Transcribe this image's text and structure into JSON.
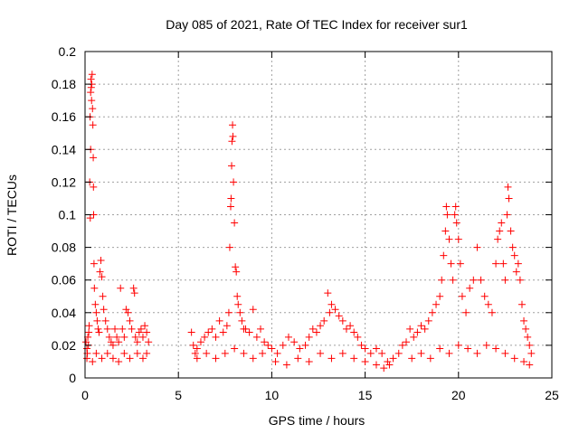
{
  "chart_data": {
    "type": "scatter",
    "title": "Day 085 of 2021, Rate Of TEC Index for receiver sur1",
    "xlabel": "GPS time / hours",
    "ylabel": "ROTI / TECUs",
    "xlim": [
      0,
      25
    ],
    "ylim": [
      0,
      0.2
    ],
    "xticks": [
      0,
      5,
      10,
      15,
      20,
      25
    ],
    "yticks": [
      0,
      0.02,
      0.04,
      0.06,
      0.08,
      0.1,
      0.12,
      0.14,
      0.16,
      0.18,
      0.2
    ],
    "xtick_labels": [
      "0",
      "5",
      "10",
      "15",
      "20",
      "25"
    ],
    "ytick_labels": [
      "0",
      "0.02",
      "0.04",
      "0.06",
      "0.08",
      "0.1",
      "0.12",
      "0.14",
      "0.16",
      "0.18",
      "0.2"
    ],
    "grid": true,
    "marker": "+",
    "color": "#ff0000",
    "series": [
      {
        "points": [
          [
            0.05,
            0.022
          ],
          [
            0.1,
            0.018
          ],
          [
            0.12,
            0.015
          ],
          [
            0.15,
            0.025
          ],
          [
            0.18,
            0.02
          ],
          [
            0.2,
            0.028
          ],
          [
            0.22,
            0.032
          ],
          [
            0.25,
            0.12
          ],
          [
            0.27,
            0.16
          ],
          [
            0.28,
            0.098
          ],
          [
            0.3,
            0.175
          ],
          [
            0.3,
            0.14
          ],
          [
            0.32,
            0.183
          ],
          [
            0.33,
            0.178
          ],
          [
            0.35,
            0.17
          ],
          [
            0.36,
            0.18
          ],
          [
            0.38,
            0.186
          ],
          [
            0.4,
            0.165
          ],
          [
            0.42,
            0.155
          ],
          [
            0.44,
            0.135
          ],
          [
            0.45,
            0.117
          ],
          [
            0.46,
            0.1
          ],
          [
            0.48,
            0.07
          ],
          [
            0.5,
            0.055
          ],
          [
            0.55,
            0.045
          ],
          [
            0.6,
            0.04
          ],
          [
            0.65,
            0.035
          ],
          [
            0.7,
            0.03
          ],
          [
            0.75,
            0.028
          ],
          [
            0.8,
            0.065
          ],
          [
            0.85,
            0.072
          ],
          [
            0.9,
            0.062
          ],
          [
            0.95,
            0.05
          ],
          [
            1.0,
            0.042
          ],
          [
            1.1,
            0.035
          ],
          [
            1.2,
            0.03
          ],
          [
            1.3,
            0.025
          ],
          [
            1.4,
            0.022
          ],
          [
            1.5,
            0.02
          ],
          [
            1.6,
            0.03
          ],
          [
            1.7,
            0.025
          ],
          [
            1.8,
            0.022
          ],
          [
            1.9,
            0.055
          ],
          [
            2.0,
            0.03
          ],
          [
            2.1,
            0.025
          ],
          [
            2.2,
            0.042
          ],
          [
            2.3,
            0.04
          ],
          [
            2.4,
            0.035
          ],
          [
            2.5,
            0.03
          ],
          [
            2.6,
            0.055
          ],
          [
            2.65,
            0.052
          ],
          [
            2.7,
            0.025
          ],
          [
            2.8,
            0.022
          ],
          [
            2.9,
            0.028
          ],
          [
            3.0,
            0.03
          ],
          [
            3.1,
            0.025
          ],
          [
            3.2,
            0.032
          ],
          [
            3.3,
            0.028
          ],
          [
            3.4,
            0.022
          ],
          [
            0.1,
            0.012
          ],
          [
            0.4,
            0.01
          ],
          [
            0.6,
            0.015
          ],
          [
            0.9,
            0.012
          ],
          [
            1.2,
            0.015
          ],
          [
            1.5,
            0.012
          ],
          [
            1.8,
            0.01
          ],
          [
            2.1,
            0.015
          ],
          [
            2.4,
            0.012
          ],
          [
            2.8,
            0.015
          ],
          [
            3.1,
            0.012
          ],
          [
            3.3,
            0.015
          ],
          [
            5.7,
            0.028
          ],
          [
            5.8,
            0.02
          ],
          [
            5.9,
            0.015
          ],
          [
            6.0,
            0.018
          ],
          [
            6.2,
            0.022
          ],
          [
            6.4,
            0.025
          ],
          [
            6.6,
            0.028
          ],
          [
            6.8,
            0.03
          ],
          [
            7.0,
            0.025
          ],
          [
            7.2,
            0.035
          ],
          [
            7.4,
            0.028
          ],
          [
            7.6,
            0.032
          ],
          [
            7.7,
            0.04
          ],
          [
            7.75,
            0.08
          ],
          [
            7.8,
            0.105
          ],
          [
            7.82,
            0.11
          ],
          [
            7.85,
            0.13
          ],
          [
            7.87,
            0.145
          ],
          [
            7.9,
            0.155
          ],
          [
            7.92,
            0.148
          ],
          [
            7.95,
            0.12
          ],
          [
            8.0,
            0.095
          ],
          [
            8.05,
            0.068
          ],
          [
            8.1,
            0.065
          ],
          [
            8.15,
            0.05
          ],
          [
            8.2,
            0.045
          ],
          [
            8.3,
            0.04
          ],
          [
            8.4,
            0.035
          ],
          [
            8.5,
            0.03
          ],
          [
            8.6,
            0.03
          ],
          [
            8.8,
            0.028
          ],
          [
            9.0,
            0.042
          ],
          [
            9.2,
            0.025
          ],
          [
            9.4,
            0.03
          ],
          [
            9.6,
            0.022
          ],
          [
            9.8,
            0.02
          ],
          [
            6.0,
            0.012
          ],
          [
            6.5,
            0.015
          ],
          [
            7.0,
            0.012
          ],
          [
            7.5,
            0.015
          ],
          [
            8.0,
            0.018
          ],
          [
            8.5,
            0.015
          ],
          [
            9.0,
            0.012
          ],
          [
            9.5,
            0.015
          ],
          [
            10.0,
            0.018
          ],
          [
            10.3,
            0.015
          ],
          [
            10.6,
            0.02
          ],
          [
            10.9,
            0.025
          ],
          [
            11.2,
            0.022
          ],
          [
            11.5,
            0.018
          ],
          [
            11.8,
            0.02
          ],
          [
            12.0,
            0.025
          ],
          [
            12.2,
            0.03
          ],
          [
            12.4,
            0.028
          ],
          [
            12.6,
            0.032
          ],
          [
            12.8,
            0.035
          ],
          [
            13.0,
            0.052
          ],
          [
            13.1,
            0.04
          ],
          [
            13.2,
            0.045
          ],
          [
            13.4,
            0.042
          ],
          [
            13.6,
            0.038
          ],
          [
            13.8,
            0.035
          ],
          [
            14.0,
            0.03
          ],
          [
            14.2,
            0.032
          ],
          [
            14.4,
            0.028
          ],
          [
            14.6,
            0.025
          ],
          [
            14.8,
            0.02
          ],
          [
            15.0,
            0.018
          ],
          [
            15.3,
            0.015
          ],
          [
            15.6,
            0.018
          ],
          [
            15.9,
            0.015
          ],
          [
            16.2,
            0.01
          ],
          [
            16.5,
            0.012
          ],
          [
            16.8,
            0.015
          ],
          [
            10.2,
            0.01
          ],
          [
            10.8,
            0.008
          ],
          [
            11.4,
            0.012
          ],
          [
            12.0,
            0.01
          ],
          [
            12.6,
            0.015
          ],
          [
            13.2,
            0.012
          ],
          [
            13.8,
            0.015
          ],
          [
            14.4,
            0.012
          ],
          [
            15.0,
            0.01
          ],
          [
            15.6,
            0.008
          ],
          [
            16.0,
            0.006
          ],
          [
            16.3,
            0.008
          ],
          [
            17.0,
            0.02
          ],
          [
            17.2,
            0.022
          ],
          [
            17.4,
            0.03
          ],
          [
            17.6,
            0.025
          ],
          [
            17.8,
            0.028
          ],
          [
            18.0,
            0.032
          ],
          [
            18.2,
            0.03
          ],
          [
            18.4,
            0.035
          ],
          [
            18.6,
            0.04
          ],
          [
            18.8,
            0.045
          ],
          [
            19.0,
            0.05
          ],
          [
            19.1,
            0.06
          ],
          [
            19.2,
            0.075
          ],
          [
            19.3,
            0.09
          ],
          [
            19.35,
            0.105
          ],
          [
            19.4,
            0.1
          ],
          [
            19.5,
            0.085
          ],
          [
            19.6,
            0.07
          ],
          [
            19.7,
            0.06
          ],
          [
            19.8,
            0.1
          ],
          [
            19.85,
            0.105
          ],
          [
            19.9,
            0.095
          ],
          [
            20.0,
            0.085
          ],
          [
            20.1,
            0.07
          ],
          [
            20.2,
            0.05
          ],
          [
            20.4,
            0.04
          ],
          [
            20.6,
            0.055
          ],
          [
            20.8,
            0.06
          ],
          [
            21.0,
            0.08
          ],
          [
            21.2,
            0.06
          ],
          [
            21.4,
            0.05
          ],
          [
            21.6,
            0.045
          ],
          [
            21.8,
            0.04
          ],
          [
            22.0,
            0.07
          ],
          [
            22.1,
            0.085
          ],
          [
            22.2,
            0.09
          ],
          [
            22.3,
            0.095
          ],
          [
            22.4,
            0.07
          ],
          [
            22.5,
            0.06
          ],
          [
            22.6,
            0.1
          ],
          [
            22.65,
            0.117
          ],
          [
            22.7,
            0.11
          ],
          [
            22.8,
            0.09
          ],
          [
            22.9,
            0.08
          ],
          [
            23.0,
            0.075
          ],
          [
            23.1,
            0.065
          ],
          [
            23.2,
            0.07
          ],
          [
            23.3,
            0.06
          ],
          [
            23.4,
            0.045
          ],
          [
            23.5,
            0.035
          ],
          [
            23.6,
            0.03
          ],
          [
            23.7,
            0.025
          ],
          [
            23.8,
            0.02
          ],
          [
            23.9,
            0.015
          ],
          [
            17.5,
            0.012
          ],
          [
            18.0,
            0.015
          ],
          [
            18.5,
            0.012
          ],
          [
            19.0,
            0.018
          ],
          [
            19.5,
            0.015
          ],
          [
            20.0,
            0.02
          ],
          [
            20.5,
            0.018
          ],
          [
            21.0,
            0.015
          ],
          [
            21.5,
            0.02
          ],
          [
            22.0,
            0.018
          ],
          [
            22.5,
            0.015
          ],
          [
            23.0,
            0.012
          ],
          [
            23.5,
            0.01
          ],
          [
            23.8,
            0.008
          ]
        ]
      }
    ]
  }
}
